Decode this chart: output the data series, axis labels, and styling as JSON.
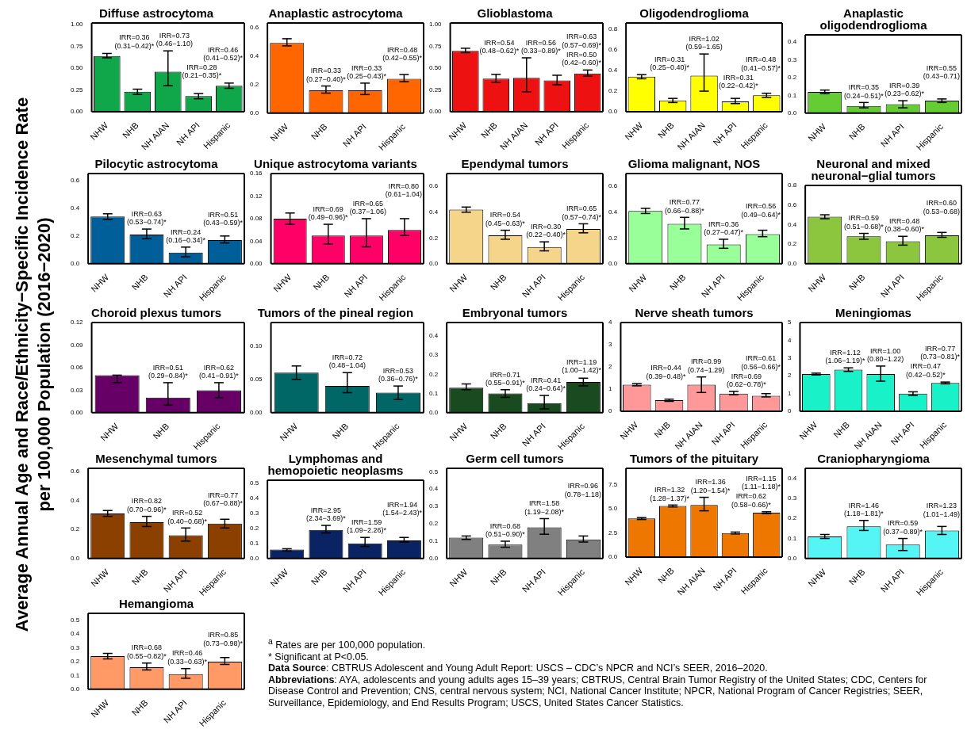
{
  "chart_data": [
    {
      "type": "bar",
      "title": "Diffuse astrocytoma",
      "ylabel": "Average Annual Age and Race/Ethnicity−Specific Incidence Rate\nper 100,000 Population (2016−2020)",
      "categories": [
        "NHW",
        "NHB",
        "NH AIAN",
        "NH API",
        "Hispanic"
      ],
      "values": [
        0.64,
        0.23,
        0.46,
        0.18,
        0.3
      ],
      "errors": [
        [
          0.62,
          0.67
        ],
        [
          0.2,
          0.26
        ],
        [
          0.3,
          0.7
        ],
        [
          0.15,
          0.21
        ],
        [
          0.27,
          0.33
        ]
      ],
      "color": "#10a64a",
      "ylim": [
        0,
        1.02
      ],
      "yticks": [
        {
          "value": 0,
          "label": "0.00"
        },
        0.25,
        {
          "value": 0.5,
          "label": "0.50"
        },
        0.75,
        {
          "value": 1,
          "label": "1.00"
        }
      ],
      "annotations": [
        "IRR=0.36\n(0.31−0.42)*",
        "IRR=0.73\n(0.46−1.10)",
        "IRR=0.28\n(0.21−0.35)*",
        "IRR=0.46\n(0.41−0.52)*"
      ]
    },
    {
      "type": "bar",
      "title": "Anaplastic astrocytoma",
      "categories": [
        "NHW",
        "NHB",
        "NH API",
        "Hispanic"
      ],
      "values": [
        0.49,
        0.16,
        0.16,
        0.24
      ],
      "errors": [
        [
          0.47,
          0.52
        ],
        [
          0.14,
          0.19
        ],
        [
          0.13,
          0.21
        ],
        [
          0.22,
          0.27
        ]
      ],
      "color": "#ff6600",
      "ylim": [
        0,
        0.63
      ],
      "yticks": [
        {
          "value": 0,
          "label": "0.0"
        },
        0.2,
        0.4,
        0.6
      ],
      "annotations": [
        "IRR=0.33\n(0.27−0.40)*",
        "IRR=0.33\n(0.25−0.43)*",
        "IRR=0.48\n(0.42−0.55)*"
      ]
    },
    {
      "type": "bar",
      "title": "Glioblastoma",
      "categories": [
        "NHW",
        "NHB",
        "NH AIAN",
        "NH API",
        "Hispanic"
      ],
      "values": [
        0.7,
        0.38,
        0.39,
        0.36,
        0.44
      ],
      "errors": [
        [
          0.68,
          0.73
        ],
        [
          0.34,
          0.43
        ],
        [
          0.23,
          0.62
        ],
        [
          0.31,
          0.42
        ],
        [
          0.41,
          0.48
        ]
      ],
      "color": "#ee1111",
      "ylim": [
        0,
        1.02
      ],
      "yticks": [
        {
          "value": 0,
          "label": "0.00"
        },
        0.25,
        {
          "value": 0.5,
          "label": "0.50"
        },
        0.75,
        {
          "value": 1,
          "label": "1.00"
        }
      ],
      "annotations": [
        "IRR=0.54\n(0.48−0.62)*",
        "IRR=0.56\n(0.33−0.89)*",
        "IRR=0.50\n(0.42−0.60)*",
        "IRR=0.63\n(0.57−0.69)*"
      ]
    },
    {
      "type": "bar",
      "title": "Oligodendroglioma",
      "categories": [
        "NHW",
        "NHB",
        "NH AIAN",
        "NH API",
        "Hispanic"
      ],
      "values": [
        0.34,
        0.11,
        0.35,
        0.1,
        0.16
      ],
      "errors": [
        [
          0.32,
          0.36
        ],
        [
          0.09,
          0.13
        ],
        [
          0.2,
          0.56
        ],
        [
          0.08,
          0.13
        ],
        [
          0.14,
          0.18
        ]
      ],
      "color": "#ffff00",
      "ylim": [
        0,
        0.86
      ],
      "yticks": [
        {
          "value": 0,
          "label": "0.0"
        },
        0.2,
        0.4,
        0.6,
        0.8
      ],
      "annotations": [
        "IRR=0.31\n(0.25−0.40)*",
        "IRR=1.02\n(0.59−1.65)",
        "IRR=0.31\n(0.22−0.42)*",
        "IRR=0.48\n(0.41−0.57)*"
      ]
    },
    {
      "type": "bar",
      "title": "Anaplastic\noligodendroglioma",
      "categories": [
        "NHW",
        "NHB",
        "NH API",
        "Hispanic"
      ],
      "values": [
        0.12,
        0.04,
        0.05,
        0.07
      ],
      "errors": [
        [
          0.11,
          0.13
        ],
        [
          0.03,
          0.06
        ],
        [
          0.03,
          0.07
        ],
        [
          0.06,
          0.08
        ]
      ],
      "color": "#66cc33",
      "ylim": [
        0,
        0.44
      ],
      "yticks": [
        {
          "value": 0,
          "label": "0.0"
        },
        0.1,
        0.2,
        0.3,
        0.4
      ],
      "annotations": [
        "IRR=0.35\n(0.24−0.51)*",
        "IRR=0.39\n(0.23−0.62)*",
        "IRR=0.55\n(0.43−0.71)"
      ]
    },
    {
      "type": "bar",
      "title": "Pilocytic astrocytoma",
      "categories": [
        "NHW",
        "NHB",
        "NH API",
        "Hispanic"
      ],
      "values": [
        0.34,
        0.21,
        0.08,
        0.17
      ],
      "errors": [
        [
          0.32,
          0.36
        ],
        [
          0.18,
          0.25
        ],
        [
          0.05,
          0.12
        ],
        [
          0.15,
          0.2
        ]
      ],
      "color": "#005f99",
      "ylim": [
        0,
        0.65
      ],
      "yticks": [
        {
          "value": 0,
          "label": "0.0"
        },
        0.2,
        0.4,
        0.6
      ],
      "annotations": [
        "IRR=0.63\n(0.53−0.74)*",
        "IRR=0.24\n(0.16−0.34)*",
        "IRR=0.51\n(0.43−0.59)*"
      ]
    },
    {
      "type": "bar",
      "title": "Unique astrocytoma variants",
      "categories": [
        "NHW",
        "NHB",
        "NH API",
        "Hispanic"
      ],
      "values": [
        0.08,
        0.05,
        0.05,
        0.06
      ],
      "errors": [
        [
          0.07,
          0.09
        ],
        [
          0.035,
          0.07
        ],
        [
          0.03,
          0.08
        ],
        [
          0.05,
          0.08
        ]
      ],
      "color": "#ff0066",
      "ylim": [
        0,
        0.16
      ],
      "yticks": [
        {
          "value": 0,
          "label": "0.00"
        },
        0.04,
        0.08,
        0.12,
        0.16
      ],
      "annotations": [
        "IRR=0.69\n(0.49−0.96)*",
        "IRR=0.65\n(0.37−1.06)",
        "IRR=0.80\n(0.61−1.04)"
      ]
    },
    {
      "type": "bar",
      "title": "Ependymal tumors",
      "categories": [
        "NHW",
        "NHB",
        "NH API",
        "Hispanic"
      ],
      "values": [
        0.42,
        0.22,
        0.13,
        0.27
      ],
      "errors": [
        [
          0.4,
          0.44
        ],
        [
          0.19,
          0.26
        ],
        [
          0.1,
          0.17
        ],
        [
          0.24,
          0.31
        ]
      ],
      "color": "#f5d58a",
      "ylim": [
        0,
        0.7
      ],
      "yticks": [
        {
          "value": 0,
          "label": "0.0"
        },
        0.2,
        0.4,
        0.6
      ],
      "annotations": [
        "IRR=0.54\n(0.45−0.63)*",
        "IRR=0.30\n(0.22−0.40)*",
        "IRR=0.65\n(0.57−0.74)*"
      ]
    },
    {
      "type": "bar",
      "title": "Glioma malignant, NOS",
      "categories": [
        "NHW",
        "NHB",
        "NH API",
        "Hispanic"
      ],
      "values": [
        0.41,
        0.31,
        0.15,
        0.23
      ],
      "errors": [
        [
          0.39,
          0.43
        ],
        [
          0.27,
          0.36
        ],
        [
          0.12,
          0.19
        ],
        [
          0.21,
          0.26
        ]
      ],
      "color": "#99ff99",
      "ylim": [
        0,
        0.7
      ],
      "yticks": [
        {
          "value": 0,
          "label": "0.0"
        },
        0.2,
        0.4,
        0.6
      ],
      "annotations": [
        "IRR=0.77\n(0.66−0.88)*",
        "IRR=0.36\n(0.27−0.47)*",
        "IRR=0.56\n(0.49−0.64)*"
      ]
    },
    {
      "type": "bar",
      "title": "Neuronal and mixed\nneuronal−glial tumors",
      "categories": [
        "NHW",
        "NHB",
        "NH API",
        "Hispanic"
      ],
      "values": [
        0.48,
        0.28,
        0.23,
        0.29
      ],
      "errors": [
        [
          0.46,
          0.5
        ],
        [
          0.25,
          0.31
        ],
        [
          0.19,
          0.28
        ],
        [
          0.27,
          0.32
        ]
      ],
      "color": "#8cc63f",
      "ylim": [
        0,
        0.8
      ],
      "yticks": [
        {
          "value": 0,
          "label": "0.0"
        },
        0.2,
        0.4,
        0.6,
        0.8
      ],
      "annotations": [
        "IRR=0.59\n(0.51−0.68)*",
        "IRR=0.48\n(0.38−0.60)*",
        "IRR=0.60\n(0.53−0.68)"
      ]
    },
    {
      "type": "bar",
      "title": "Choroid plexus tumors",
      "categories": [
        "NHW",
        "NHB",
        "Hispanic"
      ],
      "values": [
        0.05,
        0.02,
        0.03
      ],
      "errors": [
        [
          0.04,
          0.05
        ],
        [
          0.01,
          0.04
        ],
        [
          0.02,
          0.04
        ]
      ],
      "color": "#660066",
      "ylim": [
        0,
        0.12
      ],
      "yticks": [
        {
          "value": 0,
          "label": "0.00"
        },
        0.03,
        0.06,
        0.09,
        0.12
      ],
      "annotations": [
        "IRR=0.51\n(0.29−0.84)*",
        "IRR=0.62\n(0.41−0.91)*"
      ]
    },
    {
      "type": "bar",
      "title": "Tumors of the pineal region",
      "categories": [
        "NHW",
        "NHB",
        "Hispanic"
      ],
      "values": [
        0.06,
        0.04,
        0.03
      ],
      "errors": [
        [
          0.05,
          0.07
        ],
        [
          0.03,
          0.06
        ],
        [
          0.02,
          0.04
        ]
      ],
      "color": "#006666",
      "ylim": [
        0,
        0.135
      ],
      "yticks": [
        {
          "value": 0,
          "label": "0.00"
        },
        0.05,
        {
          "value": 0.1,
          "label": "0.10"
        }
      ],
      "annotations": [
        "IRR=0.72\n(0.48−1.04)",
        "IRR=0.53\n(0.36−0.76)*"
      ]
    },
    {
      "type": "bar",
      "title": "Embryonal tumors",
      "categories": [
        "NHW",
        "NHB",
        "NH API",
        "Hispanic"
      ],
      "values": [
        0.13,
        0.1,
        0.05,
        0.16
      ],
      "errors": [
        [
          0.12,
          0.15
        ],
        [
          0.08,
          0.12
        ],
        [
          0.02,
          0.09
        ],
        [
          0.14,
          0.18
        ]
      ],
      "color": "#1a4a1f",
      "ylim": [
        0,
        0.47
      ],
      "yticks": [
        {
          "value": 0,
          "label": "0.0"
        },
        0.1,
        0.2,
        0.3,
        0.4
      ],
      "annotations": [
        "IRR=0.71\n(0.55−0.91)*",
        "IRR=0.41\n(0.24−0.64)*",
        "IRR=1.19\n(1.00−1.42)*"
      ]
    },
    {
      "type": "bar",
      "title": "Nerve sheath tumors",
      "categories": [
        "NHW",
        "NHB",
        "NH AIAN",
        "NH API",
        "Hispanic"
      ],
      "values": [
        1.2,
        0.5,
        1.2,
        0.8,
        0.7
      ],
      "errors": [
        [
          1.15,
          1.25
        ],
        [
          0.45,
          0.55
        ],
        [
          0.85,
          1.55
        ],
        [
          0.75,
          0.9
        ],
        [
          0.65,
          0.8
        ]
      ],
      "color": "#ff9999",
      "ylim": [
        0,
        4
      ],
      "yticks": [
        0,
        1,
        2,
        3,
        4
      ],
      "annotations": [
        "IRR=0.44\n(0.39−0.48)*",
        "IRR=0.99\n(0.74−1.29)",
        "IRR=0.69\n(0.62−0.78)*",
        "IRR=0.61\n(0.56−0.66)*"
      ]
    },
    {
      "type": "bar",
      "title": "Meningiomas",
      "categories": [
        "NHW",
        "NHB",
        "NH AIAN",
        "NH API",
        "Hispanic"
      ],
      "values": [
        2.1,
        2.35,
        2.1,
        1.0,
        1.6
      ],
      "errors": [
        [
          2.05,
          2.15
        ],
        [
          2.25,
          2.45
        ],
        [
          1.7,
          2.55
        ],
        [
          0.9,
          1.1
        ],
        [
          1.55,
          1.65
        ]
      ],
      "color": "#19f2c8",
      "ylim": [
        0,
        5
      ],
      "yticks": [
        0,
        1,
        2,
        3,
        4,
        5
      ],
      "annotations": [
        "IRR=1.12\n(1.06−1.19)*",
        "IRR=1.00\n(0.80−1.22)",
        "IRR=0.47\n(0.42−0.52)*",
        "IRR=0.77\n(0.73−0.81)*"
      ]
    },
    {
      "type": "bar",
      "title": "Mesenchymal tumors",
      "categories": [
        "NHW",
        "NHB",
        "NH API",
        "Hispanic"
      ],
      "values": [
        0.31,
        0.25,
        0.16,
        0.24
      ],
      "errors": [
        [
          0.29,
          0.33
        ],
        [
          0.22,
          0.29
        ],
        [
          0.12,
          0.21
        ],
        [
          0.21,
          0.27
        ]
      ],
      "color": "#8b4000",
      "ylim": [
        0,
        0.62
      ],
      "yticks": [
        {
          "value": 0,
          "label": "0.0"
        },
        0.2,
        0.4,
        0.6
      ],
      "annotations": [
        "IRR=0.82\n(0.70−0.96)*",
        "IRR=0.52\n(0.40−0.68)*",
        "IRR=0.77\n(0.67−0.88)*"
      ]
    },
    {
      "type": "bar",
      "title": "Lymphomas and\nhemopoietic neoplasms",
      "categories": [
        "NHW",
        "NHB",
        "NH API",
        "Hispanic"
      ],
      "values": [
        0.06,
        0.19,
        0.1,
        0.12
      ],
      "errors": [
        [
          0.05,
          0.065
        ],
        [
          0.17,
          0.22
        ],
        [
          0.08,
          0.14
        ],
        [
          0.11,
          0.14
        ]
      ],
      "color": "#0a2463",
      "ylim": [
        0,
        0.52
      ],
      "yticks": [
        {
          "value": 0,
          "label": "0.0"
        },
        0.1,
        0.2,
        0.3,
        0.4,
        0.5
      ],
      "annotations": [
        "IRR=2.95\n(2.34−3.69)*",
        "IRR=1.59\n(1.09−2.26)*",
        "IRR=1.94\n(1.54−2.43)*"
      ]
    },
    {
      "type": "bar",
      "title": "Germ cell tumors",
      "categories": [
        "NHW",
        "NHB",
        "NH API",
        "Hispanic"
      ],
      "values": [
        0.12,
        0.08,
        0.18,
        0.11
      ],
      "errors": [
        [
          0.11,
          0.13
        ],
        [
          0.065,
          0.1
        ],
        [
          0.14,
          0.23
        ],
        [
          0.095,
          0.13
        ]
      ],
      "color": "#808080",
      "ylim": [
        0,
        0.52
      ],
      "yticks": [
        {
          "value": 0,
          "label": "0.0"
        },
        0.1,
        0.2,
        0.3,
        0.4,
        0.5
      ],
      "annotations": [
        "IRR=0.68\n(0.51−0.90)*",
        "IRR=1.58\n(1.19−2.08)*",
        "IRR=0.96\n(0.78−1.18)"
      ]
    },
    {
      "type": "bar",
      "title": "Tumors of the pituitary",
      "categories": [
        "NHW",
        "NHB",
        "NH AIAN",
        "NH API",
        "Hispanic"
      ],
      "values": [
        4.0,
        5.3,
        5.4,
        2.5,
        4.6
      ],
      "errors": [
        [
          3.9,
          4.1
        ],
        [
          5.2,
          5.4
        ],
        [
          4.8,
          6.2
        ],
        [
          2.4,
          2.6
        ],
        [
          4.5,
          4.7
        ]
      ],
      "color": "#ee7700",
      "ylim": [
        0,
        9.2
      ],
      "yticks": [
        {
          "value": 0,
          "label": "0.0"
        },
        2.5,
        {
          "value": 5,
          "label": "5.0"
        },
        7.5
      ],
      "annotations": [
        "IRR=1.32\n(1.28−1.37)*",
        "IRR=1.36\n(1.20−1.54)*",
        "IRR=0.62\n(0.58−0.66)*",
        "IRR=1.15\n(1.11−1.18)*"
      ]
    },
    {
      "type": "bar",
      "title": "Craniopharyngioma",
      "categories": [
        "NHW",
        "NHB",
        "NH API",
        "Hispanic"
      ],
      "values": [
        0.11,
        0.16,
        0.07,
        0.14
      ],
      "errors": [
        [
          0.1,
          0.12
        ],
        [
          0.14,
          0.19
        ],
        [
          0.04,
          0.1
        ],
        [
          0.12,
          0.16
        ]
      ],
      "color": "#55f5f5",
      "ylim": [
        0,
        0.45
      ],
      "yticks": [
        {
          "value": 0,
          "label": "0.0"
        },
        0.1,
        0.2,
        0.3,
        0.4
      ],
      "annotations": [
        "IRR=1.46\n(1.18−1.81)*",
        "IRR=0.59\n(0.37−0.89)*",
        "IRR=1.23\n(1.01−1.49)"
      ]
    },
    {
      "type": "bar",
      "title": "Hemangioma",
      "categories": [
        "NHW",
        "NHB",
        "NH API",
        "Hispanic"
      ],
      "values": [
        0.24,
        0.16,
        0.11,
        0.2
      ],
      "errors": [
        [
          0.22,
          0.26
        ],
        [
          0.14,
          0.19
        ],
        [
          0.08,
          0.15
        ],
        [
          0.18,
          0.23
        ]
      ],
      "color": "#ff9966",
      "ylim": [
        0,
        0.55
      ],
      "yticks": [
        {
          "value": 0,
          "label": "0.0"
        },
        0.1,
        0.2,
        0.3,
        0.4,
        0.5
      ],
      "annotations": [
        "IRR=0.68\n(0.55−0.82)*",
        "IRR=0.46\n(0.33−0.63)*",
        "IRR=0.85\n(0.73−0.98)*"
      ]
    },
    {
      "type": "other",
      "annotations": [
        "$^{a}$ Rates are per 100,000 population.",
        "* Significant at P<0.05.",
        "Data Source: CBTRUS Adolescent and Young Adult Report: USCS – CDC’s NPCR and NCI’s SEER, 2016–2020.",
        "Abbreviations: AYA, adolescents and young adults ages 15–39 years; CBTRUS, Central Brain Tumor Registry of the United States; CDC, Centers for Disease Control and Prevention; CNS, central nervous system; NCI, National Cancer Institute; NPCR, National Program of Cancer Registries; SEER, Surveillance, Epidemiology, and End Results Program; USCS, United States Cancer Statistics."
      ]
    }
  ]
}
